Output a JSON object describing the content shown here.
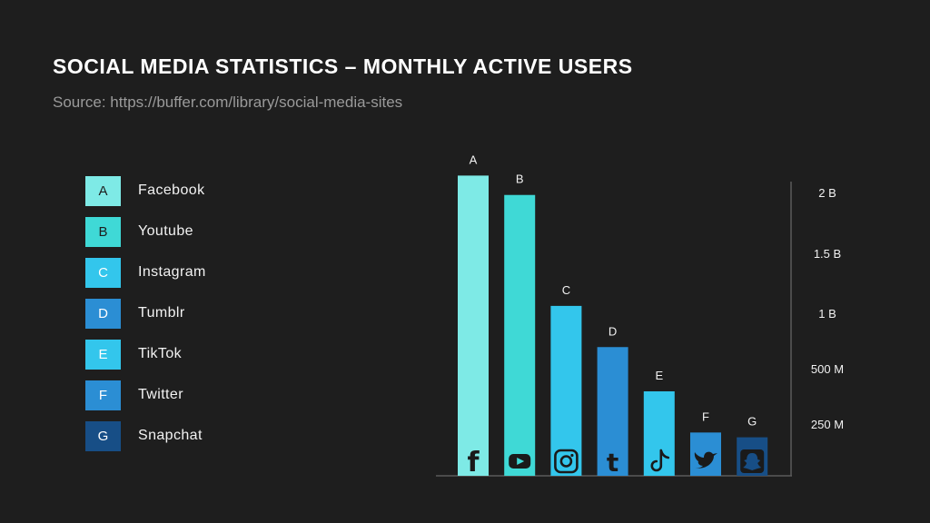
{
  "header": {
    "title": "SOCIAL MEDIA STATISTICS – MONTHLY ACTIVE USERS",
    "source": "Source: https://buffer.com/library/social-media-sites"
  },
  "legend": [
    {
      "letter": "A",
      "name": "Facebook",
      "color": "#7eeae6",
      "text_color": "#1e1e1e"
    },
    {
      "letter": "B",
      "name": "Youtube",
      "color": "#3fd9d6",
      "text_color": "#1e1e1e"
    },
    {
      "letter": "C",
      "name": "Instagram",
      "color": "#33c6ec",
      "text_color": "#ffffff"
    },
    {
      "letter": "D",
      "name": "Tumblr",
      "color": "#2b8ed4",
      "text_color": "#ffffff"
    },
    {
      "letter": "E",
      "name": "TikTok",
      "color": "#33c6ec",
      "text_color": "#ffffff"
    },
    {
      "letter": "F",
      "name": "Twitter",
      "color": "#2b8ed4",
      "text_color": "#ffffff"
    },
    {
      "letter": "G",
      "name": "Snapchat",
      "color": "#174e86",
      "text_color": "#ffffff"
    }
  ],
  "chart_data": {
    "type": "bar",
    "categories": [
      "A",
      "B",
      "C",
      "D",
      "E",
      "F",
      "G"
    ],
    "values": [
      2449,
      2291,
      1386,
      1050,
      689,
      353,
      314
    ],
    "colors": [
      "#7eeae6",
      "#3fd9d6",
      "#33c6ec",
      "#2b8ed4",
      "#33c6ec",
      "#2b8ed4",
      "#174e86"
    ],
    "icons": [
      "facebook-icon",
      "youtube-icon",
      "instagram-icon",
      "tumblr-icon",
      "tiktok-icon",
      "twitter-icon",
      "snapchat-icon"
    ],
    "y_ticks": [
      {
        "value": 2000,
        "label": "2 B"
      },
      {
        "value": 1500,
        "label": "1.5 B"
      },
      {
        "value": 1000,
        "label": "1 B"
      },
      {
        "value": 500,
        "label": "500 M"
      },
      {
        "value": 250,
        "label": "250 M"
      }
    ],
    "y_axis_position": "right",
    "grid": false
  }
}
